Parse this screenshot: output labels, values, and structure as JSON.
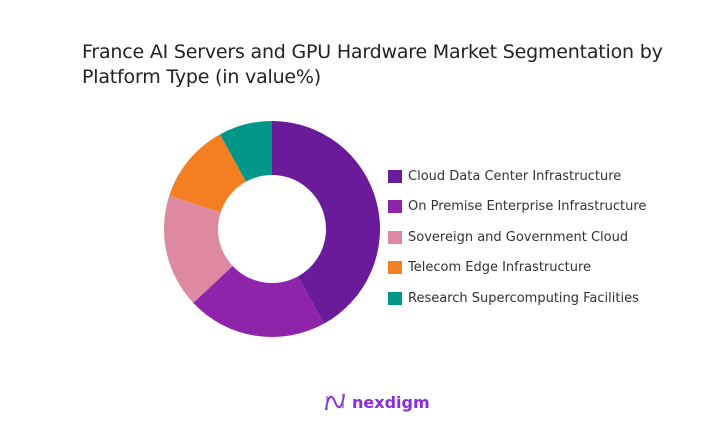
{
  "chart_data": {
    "type": "pie",
    "subtype": "donut",
    "title": "France AI Servers and GPU Hardware Market Segmentation by Platform Type (in value%)",
    "categories": [
      "Cloud Data Center Infrastructure",
      "On Premise Enterprise Infrastructure",
      "Sovereign and Government Cloud",
      "Telecom Edge Infrastructure",
      "Research Supercomputing Facilities"
    ],
    "values": [
      42,
      21,
      17,
      12,
      8
    ],
    "colors": [
      "#6a1b9a",
      "#8e24aa",
      "#de89a1",
      "#f47f22",
      "#009688"
    ],
    "legend_position": "right"
  },
  "brand": {
    "logo_text": "nexdigm",
    "color": "#8a2be2"
  }
}
